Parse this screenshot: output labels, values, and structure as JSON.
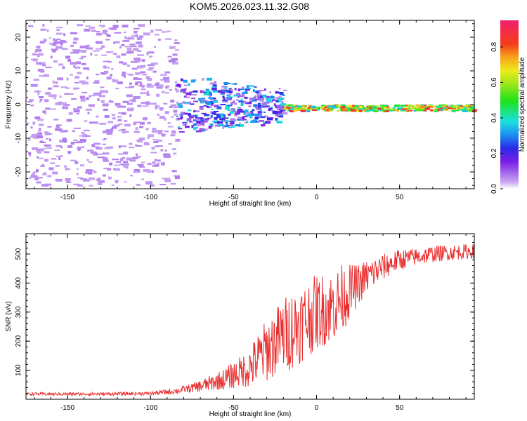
{
  "figure": {
    "title": "KOM5.2026.023.11.32.G08"
  },
  "chart_data": [
    {
      "type": "heatmap",
      "xlabel": "Height of straight line (km)",
      "ylabel": "Frequency (Hz)",
      "xlim": [
        -175,
        95
      ],
      "ylim": [
        -25,
        25
      ],
      "x_ticks": [
        -150,
        -100,
        -50,
        0,
        50
      ],
      "y_ticks": [
        -20,
        -10,
        0,
        10,
        20
      ],
      "colorbar": {
        "label": "Normalized spectral amplitude",
        "range": [
          0,
          0.95
        ],
        "ticks": [
          0.0,
          0.2,
          0.4,
          0.6,
          0.8
        ]
      },
      "features": [
        {
          "name": "noise",
          "x_range": [
            -175,
            -85
          ],
          "freq_range": [
            -24,
            24
          ],
          "amplitude": 0.04
        },
        {
          "name": "emerging-signal",
          "x_range": [
            -85,
            -20
          ],
          "freq_center": [
            -8,
            8
          ],
          "amplitude": 0.2
        },
        {
          "name": "stable-line",
          "x_range": [
            -20,
            95
          ],
          "freq": -0.8,
          "amplitude": 0.85
        }
      ]
    },
    {
      "type": "line",
      "xlabel": "Height of straight line (km)",
      "ylabel": "SNR (v/v)",
      "xlim": [
        -175,
        95
      ],
      "ylim": [
        0,
        570
      ],
      "x_ticks": [
        -150,
        -100,
        -50,
        0,
        50
      ],
      "y_ticks": [
        100,
        200,
        300,
        400,
        500
      ],
      "series": [
        {
          "name": "SNR",
          "color": "#e83030",
          "trend_x": [
            -175,
            -130,
            -100,
            -85,
            -70,
            -55,
            -40,
            -30,
            -20,
            -10,
            0,
            10,
            20,
            30,
            40,
            50,
            60,
            70,
            80,
            95
          ],
          "trend_y": [
            18,
            18,
            20,
            28,
            45,
            70,
            110,
            170,
            220,
            260,
            300,
            320,
            370,
            420,
            455,
            480,
            490,
            500,
            505,
            510
          ],
          "noise_x": [
            -175,
            -100,
            -80,
            -60,
            -45,
            -30,
            -15,
            0,
            15,
            25,
            40,
            60,
            95
          ],
          "noise_amp": [
            5,
            6,
            12,
            30,
            55,
            110,
            140,
            130,
            120,
            70,
            45,
            30,
            25
          ]
        }
      ]
    }
  ]
}
